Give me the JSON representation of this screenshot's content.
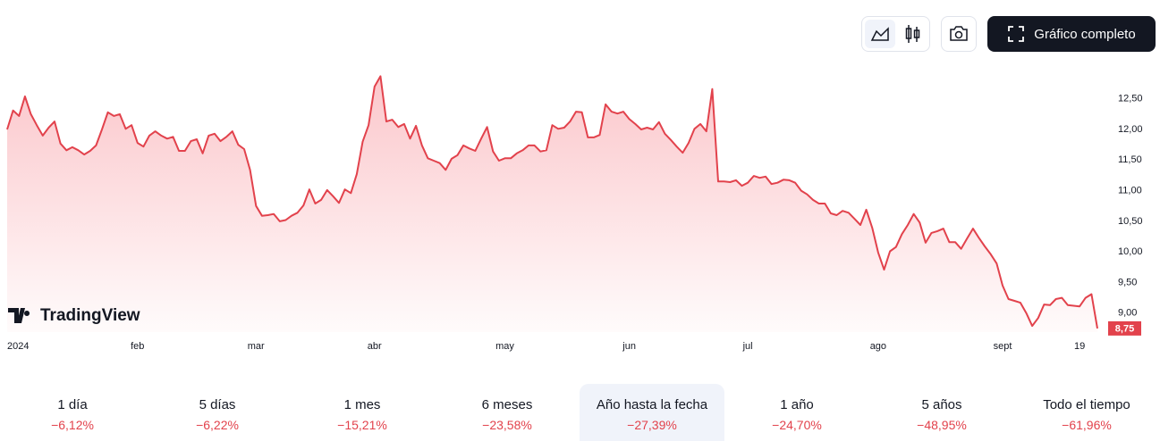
{
  "chart_data": {
    "type": "area",
    "values": [
      12.0,
      12.31,
      12.22,
      12.54,
      12.25,
      12.07,
      11.9,
      12.03,
      12.13,
      11.77,
      11.66,
      11.71,
      11.66,
      11.59,
      11.65,
      11.74,
      12.0,
      12.28,
      12.22,
      12.25,
      12.01,
      12.07,
      11.78,
      11.72,
      11.9,
      11.97,
      11.9,
      11.85,
      11.88,
      11.65,
      11.65,
      11.81,
      11.84,
      11.61,
      11.9,
      11.93,
      11.81,
      11.88,
      11.97,
      11.75,
      11.68,
      11.34,
      10.75,
      10.59,
      10.6,
      10.62,
      10.5,
      10.52,
      10.59,
      10.64,
      10.76,
      11.02,
      10.79,
      10.85,
      11.01,
      10.91,
      10.8,
      11.02,
      10.96,
      11.27,
      11.8,
      12.07,
      12.7,
      12.87,
      12.13,
      12.16,
      12.04,
      12.09,
      11.85,
      12.06,
      11.74,
      11.53,
      11.49,
      11.45,
      11.34,
      11.52,
      11.58,
      11.74,
      11.69,
      11.65,
      11.85,
      12.04,
      11.64,
      11.49,
      11.53,
      11.53,
      11.61,
      11.66,
      11.74,
      11.74,
      11.64,
      11.66,
      12.07,
      12.01,
      12.03,
      12.13,
      12.29,
      12.28,
      11.87,
      11.87,
      11.91,
      12.41,
      12.29,
      12.26,
      12.29,
      12.17,
      12.09,
      12.0,
      12.03,
      12.0,
      12.12,
      11.93,
      11.83,
      11.72,
      11.62,
      11.78,
      12.01,
      12.09,
      11.97,
      12.66,
      11.15,
      11.15,
      11.14,
      11.17,
      11.08,
      11.13,
      11.24,
      11.21,
      11.23,
      11.11,
      11.13,
      11.18,
      11.17,
      11.13,
      11.0,
      10.94,
      10.85,
      10.79,
      10.79,
      10.63,
      10.6,
      10.67,
      10.64,
      10.54,
      10.44,
      10.69,
      10.39,
      9.99,
      9.71,
      10.01,
      10.08,
      10.29,
      10.44,
      10.62,
      10.48,
      10.15,
      10.31,
      10.34,
      10.38,
      10.16,
      10.16,
      10.05,
      10.22,
      10.38,
      10.23,
      10.09,
      9.96,
      9.81,
      9.45,
      9.23,
      9.2,
      9.17,
      9.0,
      8.79,
      8.92,
      9.14,
      9.13,
      9.23,
      9.25,
      9.13,
      9.12,
      9.11,
      9.25,
      9.31,
      8.75
    ],
    "color": "#e2424c",
    "last_label": "8,75",
    "ylim": [
      8.69,
      13.24
    ],
    "yticks": [
      {
        "value": 9,
        "label": "9,00"
      },
      {
        "value": 9.5,
        "label": "9,50"
      },
      {
        "value": 10,
        "label": "10,00"
      },
      {
        "value": 10.5,
        "label": "10,50"
      },
      {
        "value": 11,
        "label": "11,00"
      },
      {
        "value": 11.5,
        "label": "11,50"
      },
      {
        "value": 12,
        "label": "12,00"
      },
      {
        "value": 12.5,
        "label": "12,50"
      }
    ],
    "xticks": [
      {
        "value": 0,
        "label": "2024"
      },
      {
        "value": 22,
        "label": "feb"
      },
      {
        "value": 42,
        "label": "mar"
      },
      {
        "value": 62,
        "label": "abr"
      },
      {
        "value": 84,
        "label": "may"
      },
      {
        "value": 105,
        "label": "jun"
      },
      {
        "value": 125,
        "label": "jul"
      },
      {
        "value": 147,
        "label": "ago"
      },
      {
        "value": 168,
        "label": "sept"
      },
      {
        "value": 181,
        "label": "19"
      }
    ],
    "grid": false
  },
  "watermark": "TradingView",
  "toolbar": {
    "full_chart": "Gráfico completo"
  },
  "periods": [
    {
      "label": "1 día",
      "change": "−6,12%"
    },
    {
      "label": "5 días",
      "change": "−6,22%"
    },
    {
      "label": "1 mes",
      "change": "−15,21%"
    },
    {
      "label": "6 meses",
      "change": "−23,58%"
    },
    {
      "label": "Año hasta la fecha",
      "change": "−27,39%",
      "selected": true
    },
    {
      "label": "1 año",
      "change": "−24,70%"
    },
    {
      "label": "5 años",
      "change": "−48,95%"
    },
    {
      "label": "Todo el tiempo",
      "change": "−61,96%"
    }
  ]
}
